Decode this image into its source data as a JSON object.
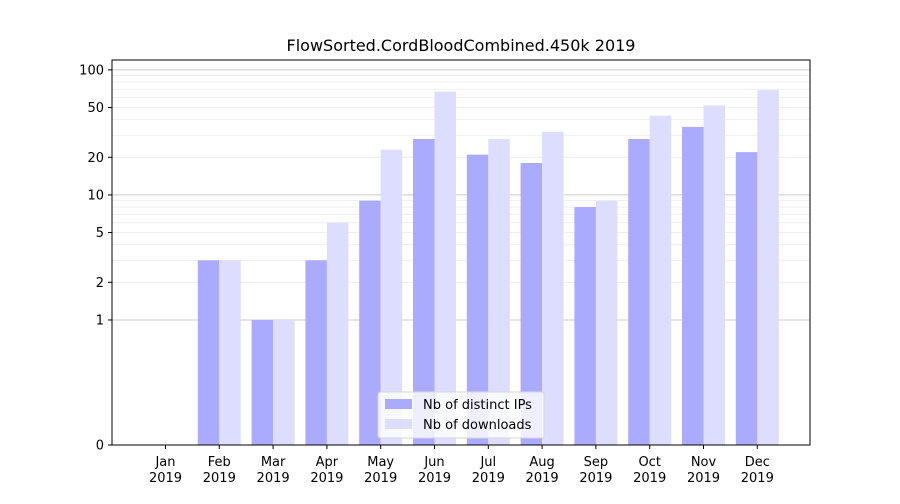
{
  "chart_data": {
    "type": "bar",
    "title": "FlowSorted.CordBloodCombined.450k 2019",
    "xlabel": "",
    "ylabel": "",
    "yscale": "symlog",
    "ylim": [
      0,
      120
    ],
    "y_ticks": [
      0,
      1,
      2,
      5,
      10,
      20,
      50,
      100
    ],
    "grid": "horizontal",
    "legend_position": "bottom-center",
    "categories": [
      [
        "Jan",
        "2019"
      ],
      [
        "Feb",
        "2019"
      ],
      [
        "Mar",
        "2019"
      ],
      [
        "Apr",
        "2019"
      ],
      [
        "May",
        "2019"
      ],
      [
        "Jun",
        "2019"
      ],
      [
        "Jul",
        "2019"
      ],
      [
        "Aug",
        "2019"
      ],
      [
        "Sep",
        "2019"
      ],
      [
        "Oct",
        "2019"
      ],
      [
        "Nov",
        "2019"
      ],
      [
        "Dec",
        "2019"
      ]
    ],
    "series": [
      {
        "name": "Nb of distinct IPs",
        "color": "#aaaaff",
        "values": [
          0,
          3,
          1,
          3,
          9,
          28,
          21,
          18,
          8,
          28,
          35,
          22
        ]
      },
      {
        "name": "Nb of downloads",
        "color": "#ddddff",
        "values": [
          0,
          3,
          1,
          6,
          23,
          67,
          28,
          32,
          9,
          43,
          52,
          69
        ]
      }
    ]
  }
}
